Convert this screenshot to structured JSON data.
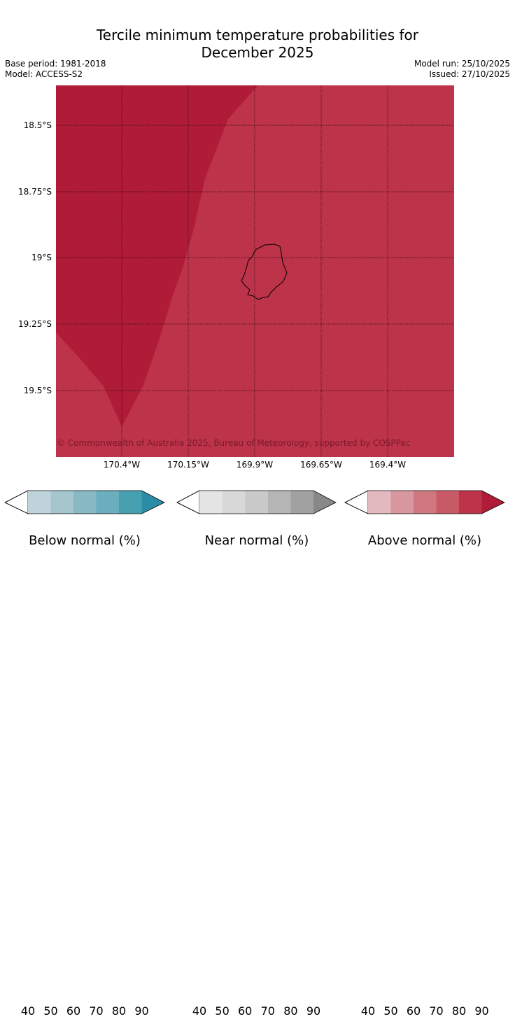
{
  "title_line1": "Tercile minimum temperature probabilities for",
  "title_line2": "December 2025",
  "base_period": "Base period: 1981-2018",
  "model": "Model: ACCESS-S2",
  "model_run": "Model run: 25/10/2025",
  "issued": "Issued: 27/10/2025",
  "map": {
    "lat_labels": [
      "18.5°S",
      "18.75°S",
      "19°S",
      "19.25°S",
      "19.5°S"
    ],
    "lon_labels": [
      "170.4°W",
      "170.15°W",
      "169.9°W",
      "169.65°W",
      "169.4°W"
    ],
    "copyright": "© Commonwealth of Australia 2025, Bureau of Meteorology, supported by COSPPac",
    "region_80_90_color": "#bd3349",
    "region_90plus_color": "#b01c38"
  },
  "colorbars": [
    {
      "label": "Below normal (%)",
      "ticks": [
        "40",
        "50",
        "60",
        "70",
        "80",
        "90"
      ],
      "colors": [
        "#bfd4da",
        "#a5c6cc",
        "#88b8c4",
        "#6baebe",
        "#47a0b2",
        "#2b8da5"
      ]
    },
    {
      "label": "Near normal (%)",
      "ticks": [
        "40",
        "50",
        "60",
        "70",
        "80",
        "90"
      ],
      "colors": [
        "#e5e5e5",
        "#d8d8d8",
        "#c9c9c9",
        "#b5b5b5",
        "#a1a1a1",
        "#888888"
      ]
    },
    {
      "label": "Above normal (%)",
      "ticks": [
        "40",
        "50",
        "60",
        "70",
        "80",
        "90"
      ],
      "colors": [
        "#e2b9be",
        "#d8979e",
        "#d07880",
        "#c85a66",
        "#bd3349",
        "#b01c38"
      ]
    }
  ]
}
